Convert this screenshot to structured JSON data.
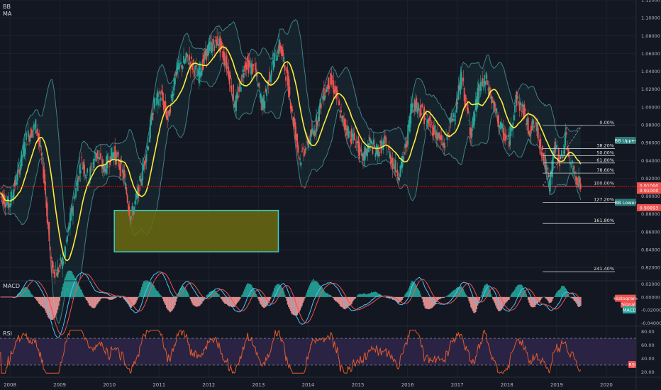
{
  "overlays": {
    "bb_label": "BB",
    "ma_label": "MA"
  },
  "colors": {
    "background": "#131722",
    "up": "#26a69a",
    "down": "#ef5350",
    "ma": "#ffeb3b",
    "bb": "#3f7f86",
    "fib": "#c8c8c8",
    "price_line": "#ff0000",
    "zone_fill": "#6b6b10",
    "zone_border": "#37d0c8",
    "macd_line": "#4fc3f7",
    "signal_line": "#ef5350",
    "rsi_line": "#e05a2b",
    "rsi_band": "#2a2344"
  },
  "price_axis": {
    "ticks": [
      "1.12000",
      "1.10000",
      "1.08000",
      "1.06000",
      "1.04000",
      "1.02000",
      "1.00000",
      "0.98000",
      "0.96000",
      "0.94000",
      "0.92000",
      "0.90000",
      "0.88000",
      "0.86000",
      "0.84000",
      "0.82000"
    ],
    "tick_values": [
      1.12,
      1.1,
      1.08,
      1.06,
      1.04,
      1.02,
      1.0,
      0.98,
      0.96,
      0.94,
      0.92,
      0.9,
      0.88,
      0.86,
      0.84,
      0.82
    ],
    "ymax": 1.12,
    "ymin": 0.805
  },
  "time_axis": {
    "labels": [
      "2008",
      "2009",
      "2010",
      "2011",
      "2012",
      "2013",
      "2014",
      "2015",
      "2016",
      "2017",
      "2018",
      "2019",
      "2020"
    ]
  },
  "price_labels": {
    "bb_upper": "BB Upper",
    "current_a": "0.91090",
    "current_b": "0.91000",
    "bb_lower": "BB Lower",
    "low_price": "0.90893"
  },
  "fib_levels": [
    {
      "label": "0.00%",
      "value": 0.9793
    },
    {
      "label": "38.20%",
      "value": 0.9533
    },
    {
      "label": "50.00%",
      "value": 0.9453
    },
    {
      "label": "61.80%",
      "value": 0.9372
    },
    {
      "label": "78.60%",
      "value": 0.9258
    },
    {
      "label": "100.00%",
      "value": 0.9113
    },
    {
      "label": "127.20%",
      "value": 0.8928
    },
    {
      "label": "161.80%",
      "value": 0.8693
    },
    {
      "label": "241.40%",
      "value": 0.8152
    }
  ],
  "zone": {
    "price_top": 0.884,
    "price_bottom": 0.8375,
    "time_start": 2010.1,
    "time_end": 2013.4
  },
  "macd": {
    "title": "MACD",
    "ticks": [
      "0.02000",
      "0.00000",
      "-0.02000",
      "-0.04000"
    ],
    "tick_values": [
      0.02,
      0.0,
      -0.02,
      -0.04
    ],
    "labels": {
      "histogram": "Histogram",
      "signal": "Signal",
      "macd": "MACD"
    }
  },
  "rsi": {
    "title": "RSI",
    "ticks": [
      "80.00",
      "60.00",
      "40.00",
      "20.00"
    ],
    "tick_values": [
      80,
      60,
      40,
      20
    ],
    "label": "RSI",
    "upper": 70,
    "lower": 30
  },
  "chart_data": {
    "type": "candlestick",
    "time_range": [
      2007.8,
      2020.6
    ],
    "price_path": [
      [
        2007.8,
        0.905
      ],
      [
        2008.0,
        0.89
      ],
      [
        2008.2,
        0.93
      ],
      [
        2008.35,
        0.965
      ],
      [
        2008.55,
        0.98
      ],
      [
        2008.7,
        0.925
      ],
      [
        2008.85,
        0.82
      ],
      [
        2008.97,
        0.815
      ],
      [
        2009.1,
        0.83
      ],
      [
        2009.25,
        0.88
      ],
      [
        2009.45,
        0.94
      ],
      [
        2009.6,
        0.92
      ],
      [
        2009.75,
        0.95
      ],
      [
        2009.9,
        0.93
      ],
      [
        2010.1,
        0.95
      ],
      [
        2010.3,
        0.925
      ],
      [
        2010.45,
        0.875
      ],
      [
        2010.6,
        0.905
      ],
      [
        2010.8,
        0.96
      ],
      [
        2010.9,
        1.0
      ],
      [
        2011.05,
        1.015
      ],
      [
        2011.2,
        0.985
      ],
      [
        2011.35,
        1.04
      ],
      [
        2011.6,
        1.055
      ],
      [
        2011.8,
        1.035
      ],
      [
        2012.0,
        1.065
      ],
      [
        2012.2,
        1.075
      ],
      [
        2012.4,
        1.045
      ],
      [
        2012.55,
        1.0
      ],
      [
        2012.75,
        1.05
      ],
      [
        2012.95,
        1.04
      ],
      [
        2013.1,
        1.0
      ],
      [
        2013.3,
        1.05
      ],
      [
        2013.45,
        1.07
      ],
      [
        2013.6,
        1.03
      ],
      [
        2013.75,
        0.975
      ],
      [
        2013.85,
        0.94
      ],
      [
        2014.0,
        0.96
      ],
      [
        2014.15,
        0.975
      ],
      [
        2014.3,
        1.01
      ],
      [
        2014.45,
        1.03
      ],
      [
        2014.55,
        1.02
      ],
      [
        2014.7,
        0.985
      ],
      [
        2014.85,
        0.97
      ],
      [
        2015.0,
        0.96
      ],
      [
        2015.1,
        0.94
      ],
      [
        2015.25,
        0.96
      ],
      [
        2015.4,
        0.95
      ],
      [
        2015.55,
        0.96
      ],
      [
        2015.7,
        0.94
      ],
      [
        2015.85,
        0.925
      ],
      [
        2016.0,
        0.96
      ],
      [
        2016.1,
        1.005
      ],
      [
        2016.25,
        1.0
      ],
      [
        2016.4,
        0.985
      ],
      [
        2016.55,
        0.975
      ],
      [
        2016.75,
        0.955
      ],
      [
        2016.9,
        0.985
      ],
      [
        2017.0,
        1.0
      ],
      [
        2017.1,
        1.035
      ],
      [
        2017.2,
        1.0
      ],
      [
        2017.3,
        0.97
      ],
      [
        2017.45,
        1.02
      ],
      [
        2017.6,
        1.03
      ],
      [
        2017.75,
        1.0
      ],
      [
        2017.9,
        0.975
      ],
      [
        2018.05,
        0.96
      ],
      [
        2018.2,
        1.01
      ],
      [
        2018.35,
        0.995
      ],
      [
        2018.45,
        0.975
      ],
      [
        2018.6,
        0.98
      ],
      [
        2018.75,
        0.945
      ],
      [
        2018.87,
        0.912
      ],
      [
        2018.97,
        0.955
      ],
      [
        2019.1,
        0.94
      ],
      [
        2019.2,
        0.965
      ],
      [
        2019.3,
        0.935
      ],
      [
        2019.4,
        0.925
      ],
      [
        2019.5,
        0.911
      ]
    ]
  }
}
